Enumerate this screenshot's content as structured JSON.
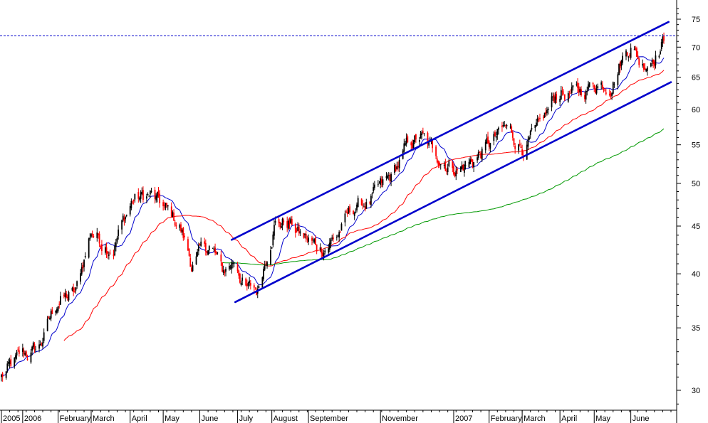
{
  "chart_data": {
    "type": "candlestick",
    "title": "",
    "scale": "log",
    "ylim": [
      28,
      78
    ],
    "y_ticks": [
      30,
      35,
      40,
      45,
      50,
      55,
      60,
      65,
      70,
      75
    ],
    "y_tick_labels": [
      "30",
      "35",
      "40",
      "45",
      "50",
      "55",
      "60",
      "65",
      "70",
      "75"
    ],
    "x_range": [
      "2005-12-15",
      "2007-07-05"
    ],
    "x_ticks": [
      {
        "label": "2005",
        "date": "2005-12-15"
      },
      {
        "label": "2006",
        "date": "2006-01-02"
      },
      {
        "label": "February",
        "date": "2006-02-01"
      },
      {
        "label": "March",
        "date": "2006-03-01"
      },
      {
        "label": "April",
        "date": "2006-04-03"
      },
      {
        "label": "May",
        "date": "2006-05-01"
      },
      {
        "label": "June",
        "date": "2006-06-01"
      },
      {
        "label": "July",
        "date": "2006-07-03"
      },
      {
        "label": "August",
        "date": "2006-08-01"
      },
      {
        "label": "September",
        "date": "2006-09-01"
      },
      {
        "label": "November",
        "date": "2006-11-01"
      },
      {
        "label": "2007",
        "date": "2007-01-02"
      },
      {
        "label": "February",
        "date": "2007-02-01"
      },
      {
        "label": "March",
        "date": "2007-03-01"
      },
      {
        "label": "April",
        "date": "2007-04-02"
      },
      {
        "label": "May",
        "date": "2007-05-01"
      },
      {
        "label": "June",
        "date": "2007-06-01"
      }
    ],
    "price_anchors": {
      "dates": [
        "2005-12-15",
        "2006-01-01",
        "2006-01-16",
        "2006-02-01",
        "2006-02-16",
        "2006-03-01",
        "2006-03-10",
        "2006-03-20",
        "2006-04-05",
        "2006-04-20",
        "2006-05-01",
        "2006-05-15",
        "2006-05-25",
        "2006-06-10",
        "2006-06-20",
        "2006-07-01",
        "2006-07-10",
        "2006-07-20",
        "2006-08-03",
        "2006-08-15",
        "2006-08-25",
        "2006-09-10",
        "2006-09-25",
        "2006-10-10",
        "2006-10-25",
        "2006-11-10",
        "2006-11-25",
        "2006-12-05",
        "2006-12-15",
        "2007-01-05",
        "2007-01-15",
        "2007-02-01",
        "2007-02-15",
        "2007-03-01",
        "2007-03-15",
        "2007-04-01",
        "2007-04-15",
        "2007-05-01",
        "2007-05-15",
        "2007-06-01",
        "2007-06-10",
        "2007-06-20",
        "2007-06-30"
      ],
      "closes": [
        31.0,
        32.5,
        33.3,
        37.5,
        38.0,
        44.5,
        43.5,
        43.0,
        48.0,
        48.5,
        47.0,
        45.0,
        41.0,
        43.0,
        40.0,
        41.5,
        38.5,
        38.3,
        45.5,
        45.5,
        44.0,
        42.5,
        44.0,
        47.0,
        48.0,
        50.5,
        55.0,
        56.0,
        54.0,
        52.0,
        52.5,
        55.0,
        57.0,
        55.0,
        56.5,
        63.0,
        62.0,
        64.0,
        64.5,
        71.0,
        67.0,
        69.0,
        71.5
      ]
    },
    "series": [
      {
        "color": "#000000",
        "kind": "candles",
        "up_color": "#000000",
        "down_color": "#ff0000"
      },
      {
        "color": "#0000cc",
        "kind": "moving-average",
        "period_days": 14
      },
      {
        "color": "#ff0000",
        "kind": "moving-average",
        "period_days": 50,
        "from": "2006-02-05"
      },
      {
        "color": "#009900",
        "kind": "moving-average",
        "period_days": 200,
        "from": "2006-06-20"
      }
    ],
    "reference_line": {
      "y": 72,
      "style": "dashed",
      "color": "#0000cc"
    },
    "trend_lines": [
      {
        "from": {
          "date": "2006-06-28",
          "y": 43.5
        },
        "to": {
          "date": "2007-07-03",
          "y": 74.5
        },
        "color": "#0000cc"
      },
      {
        "from": {
          "date": "2006-07-01",
          "y": 37.3
        },
        "to": {
          "date": "2007-07-05",
          "y": 64.2
        },
        "color": "#0000cc"
      }
    ],
    "grid": false,
    "colors": {
      "axis": "#000000",
      "background": "#ffffff"
    }
  }
}
